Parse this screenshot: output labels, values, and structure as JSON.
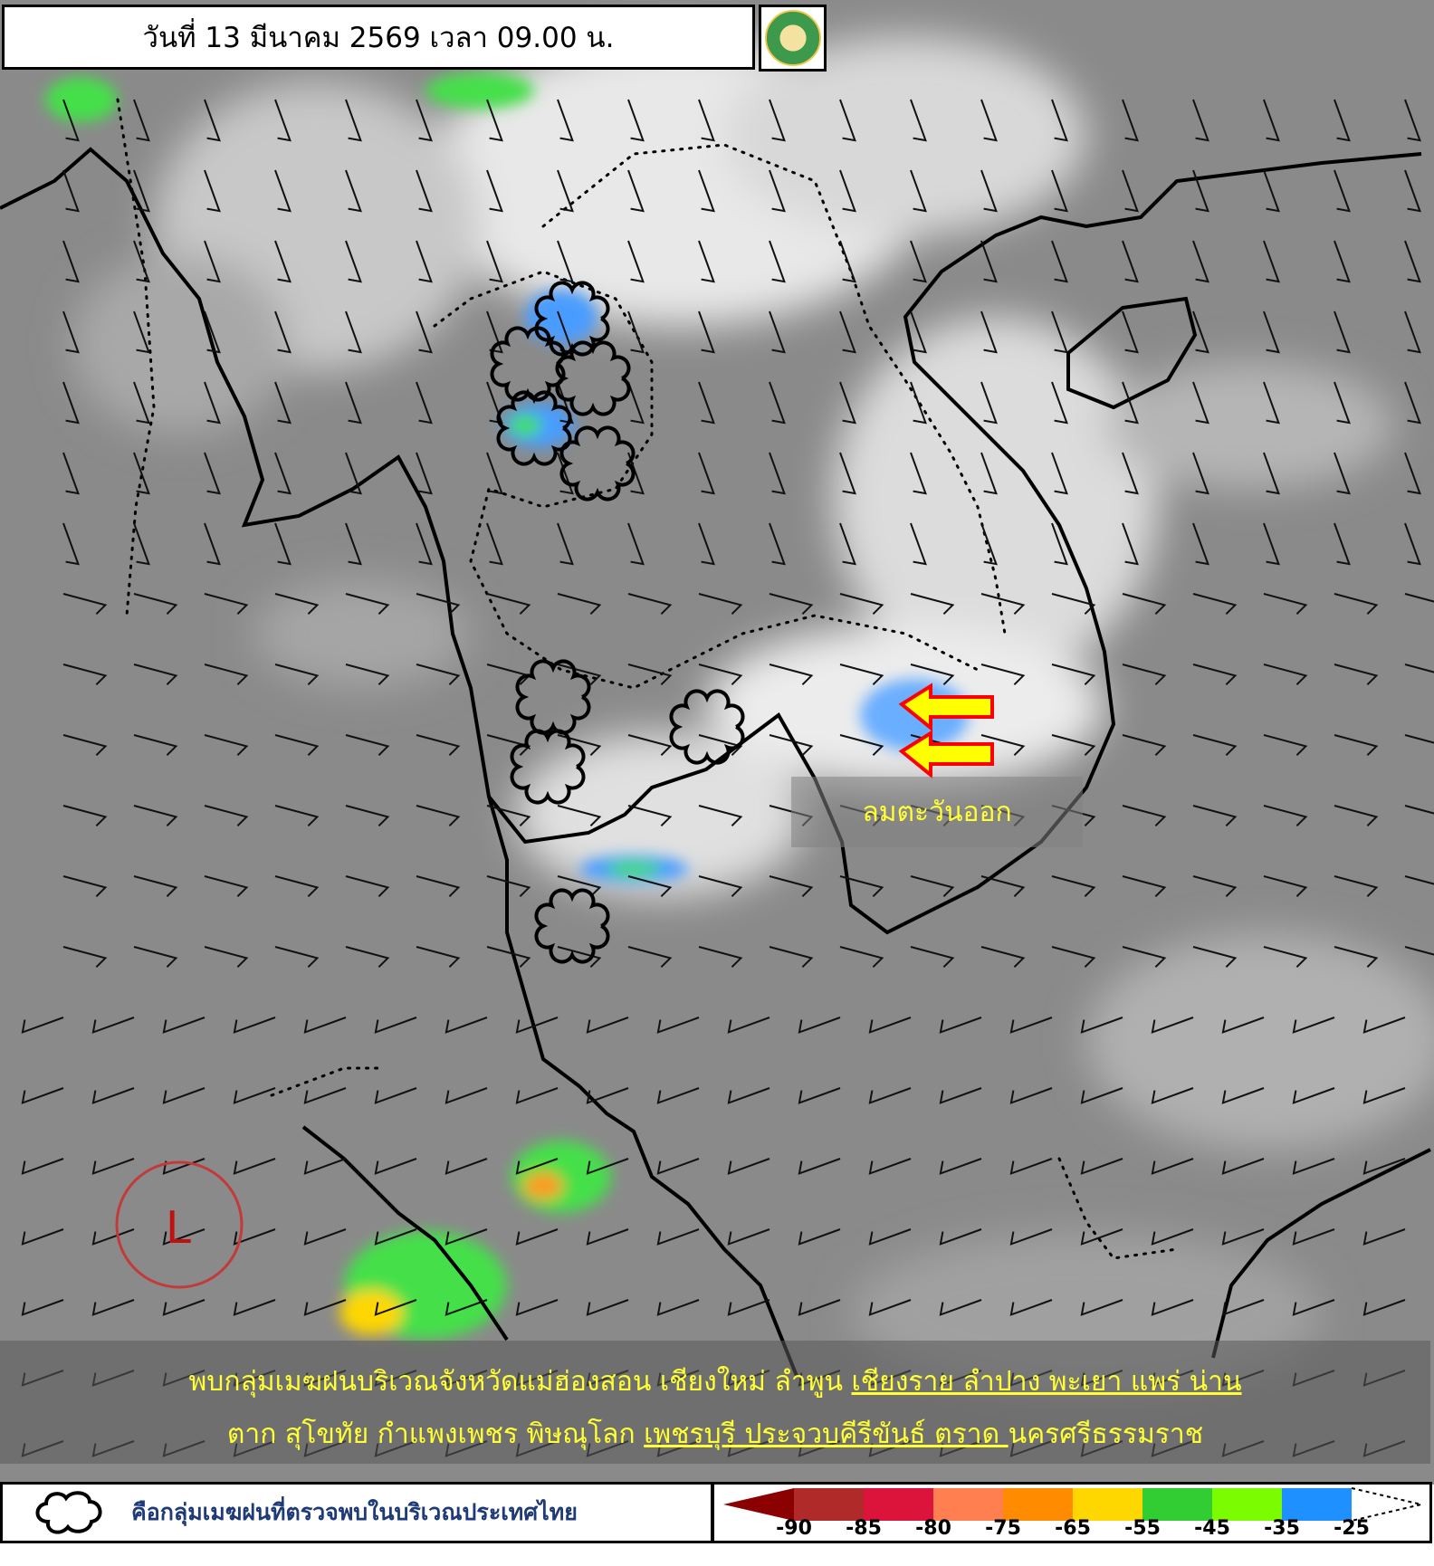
{
  "header": {
    "title": "วันที่ 13 มีนาคม 2569 เวลา 09.00 น.",
    "logo": "กรมอุตุนิยมวิทยา METEOROLOGICAL DEPARTMENT"
  },
  "map": {
    "wind_label": "ลมตะวันออก",
    "low_pressure_symbol": "L",
    "arrow_color": "#ffff00",
    "arrow_outline": "#ff0000"
  },
  "summary": {
    "line1_parts": [
      "พบกลุ่มเมฆฝนบริเวณจังหวัดแม่ฮ่องสอน เชียงใหม่  ลำพูน ",
      "เชียงราย  ลำปาง พะเยา แพร่ น่าน "
    ],
    "line2_parts": [
      "ตาก สุโขทัย กำแพงเพชร พิษณุโลก ",
      "เพชรบุรี ประจวบคีรีขันธ์ ตราด ",
      "นครศรีธรรมราช"
    ]
  },
  "legend": {
    "cloud_icon": "cloud-outline-icon",
    "description": "คือกลุ่มเมฆฝนที่ตรวจพบในบริเวณประเทศไทย",
    "scale_labels": [
      "-90",
      "-85",
      "-80",
      "-75",
      "-65",
      "-55",
      "-45",
      "-35",
      "-25"
    ],
    "scale_colors": [
      "#8b0000",
      "#b02a2a",
      "#dc143c",
      "#ff7f50",
      "#ff8c00",
      "#ffd700",
      "#32cd32",
      "#7cfc00",
      "#1e90ff",
      "#ffffff"
    ]
  }
}
